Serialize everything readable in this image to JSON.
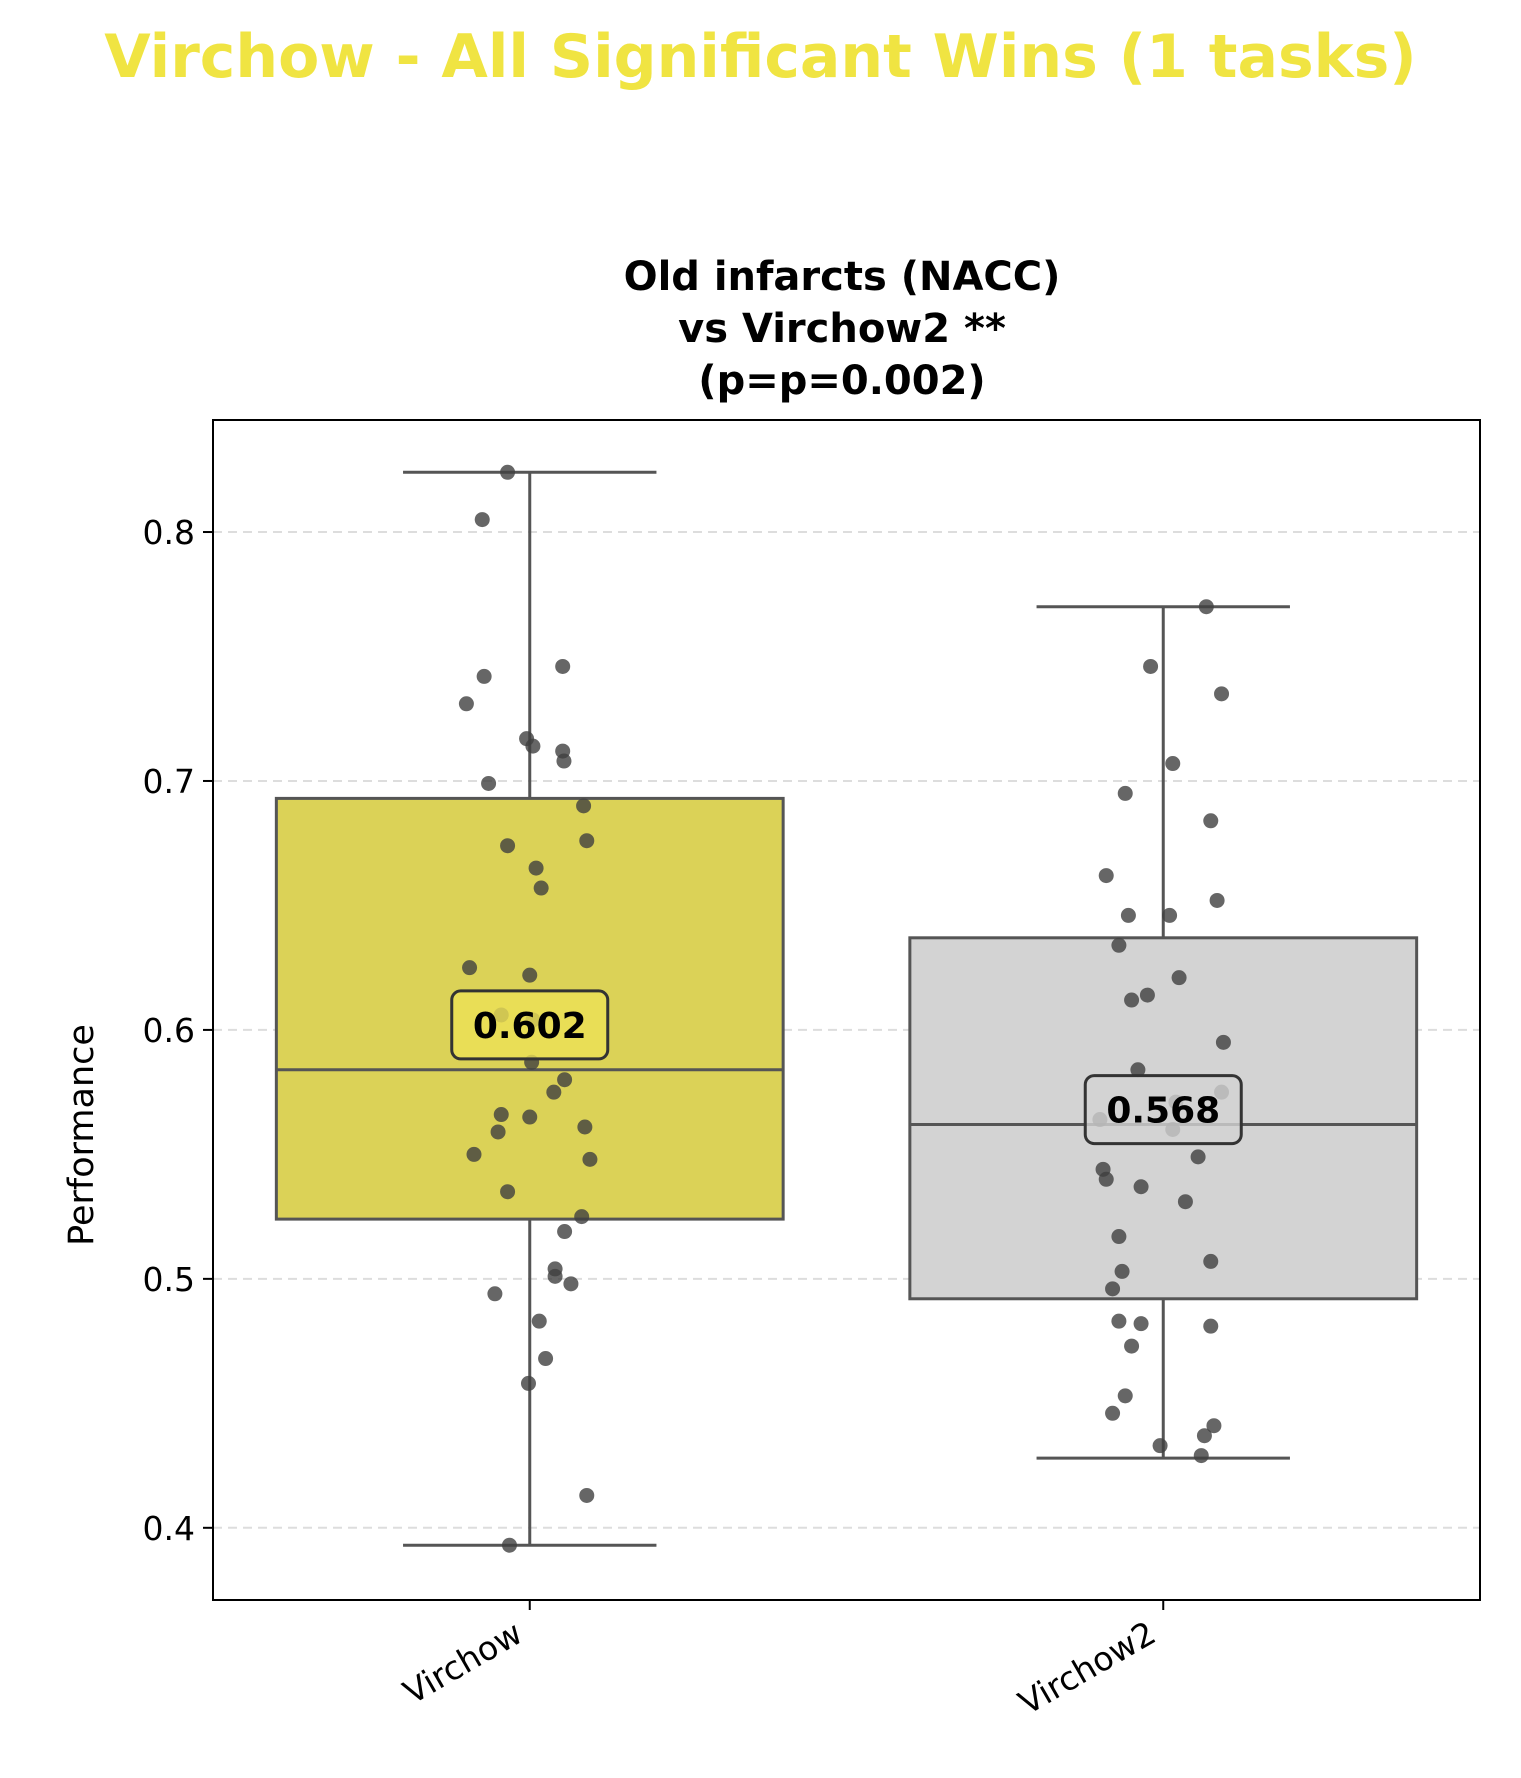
{
  "figure": {
    "suptitle": "Virchow - All Significant Wins (1 tasks)",
    "suptitle_color": "#f0e442"
  },
  "chart_data": {
    "type": "box",
    "title_lines": [
      "Old infarcts (NACC)",
      "vs Virchow2 **",
      "(p=p=0.002)"
    ],
    "ylabel": "Performance",
    "xlabel": "",
    "ylim": [
      0.371,
      0.845
    ],
    "yticks": [
      0.4,
      0.5,
      0.6,
      0.7,
      0.8
    ],
    "ytick_labels": [
      "0.4",
      "0.5",
      "0.6",
      "0.7",
      "0.8"
    ],
    "grid": "y-dashed",
    "categories": [
      "Virchow",
      "Virchow2"
    ],
    "series": [
      {
        "name": "Virchow",
        "color": "#dbd257",
        "box": {
          "q1": 0.524,
          "median": 0.584,
          "q3": 0.693,
          "whisker_low": 0.393,
          "whisker_high": 0.824
        },
        "mean": 0.602,
        "mean_label": "0.602",
        "mean_label_bg": "#ece156",
        "points": [
          0.824,
          0.805,
          0.746,
          0.742,
          0.731,
          0.717,
          0.714,
          0.712,
          0.708,
          0.699,
          0.69,
          0.676,
          0.674,
          0.665,
          0.657,
          0.625,
          0.622,
          0.606,
          0.604,
          0.587,
          0.58,
          0.575,
          0.566,
          0.565,
          0.561,
          0.559,
          0.55,
          0.548,
          0.535,
          0.525,
          0.519,
          0.504,
          0.501,
          0.498,
          0.494,
          0.483,
          0.468,
          0.458,
          0.413,
          0.393
        ],
        "jitter": [
          -0.035,
          -0.075,
          0.052,
          -0.072,
          -0.1,
          -0.005,
          0.005,
          0.052,
          0.054,
          -0.065,
          0.085,
          0.09,
          -0.035,
          0.01,
          0.018,
          -0.095,
          0.0,
          -0.045,
          0.005,
          0.003,
          0.055,
          0.038,
          -0.045,
          0.0,
          0.087,
          -0.05,
          -0.088,
          0.095,
          -0.035,
          0.082,
          0.055,
          0.04,
          0.04,
          0.065,
          -0.055,
          0.015,
          0.025,
          -0.002,
          0.09,
          -0.032
        ]
      },
      {
        "name": "Virchow2",
        "color": "#d3d3d3",
        "box": {
          "q1": 0.492,
          "median": 0.562,
          "q3": 0.637,
          "whisker_low": 0.428,
          "whisker_high": 0.77
        },
        "mean": 0.568,
        "mean_label": "0.568",
        "mean_label_bg": "#d3d3d3",
        "points": [
          0.77,
          0.746,
          0.735,
          0.707,
          0.695,
          0.684,
          0.662,
          0.652,
          0.646,
          0.646,
          0.634,
          0.621,
          0.614,
          0.612,
          0.595,
          0.584,
          0.575,
          0.571,
          0.564,
          0.56,
          0.549,
          0.544,
          0.54,
          0.537,
          0.531,
          0.517,
          0.507,
          0.503,
          0.496,
          0.483,
          0.482,
          0.481,
          0.473,
          0.453,
          0.446,
          0.441,
          0.437,
          0.433,
          0.429
        ],
        "jitter": [
          0.068,
          -0.02,
          0.092,
          0.015,
          -0.06,
          0.075,
          -0.09,
          0.085,
          -0.055,
          0.01,
          -0.07,
          0.025,
          -0.025,
          -0.05,
          0.095,
          -0.04,
          0.092,
          0.02,
          -0.1,
          0.015,
          0.055,
          -0.095,
          -0.09,
          -0.035,
          0.035,
          -0.07,
          0.075,
          -0.065,
          -0.08,
          -0.07,
          -0.035,
          0.075,
          -0.05,
          -0.06,
          -0.08,
          0.08,
          0.065,
          -0.005,
          0.06
        ]
      }
    ],
    "colors": {
      "edge": "#555555",
      "point": "#404040",
      "grid": "#dddddd"
    }
  }
}
